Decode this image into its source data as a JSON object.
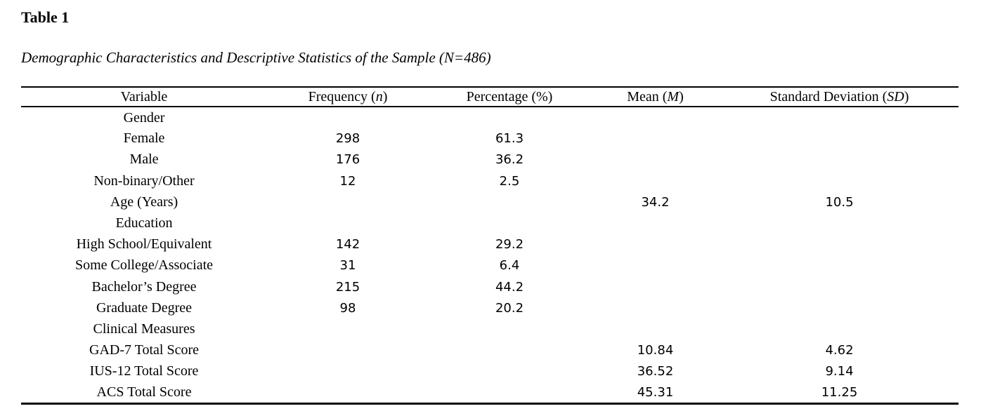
{
  "colors": {
    "background": "#ffffff",
    "text": "#000000",
    "rule": "#000000"
  },
  "document": {
    "table_label": "Table 1",
    "caption": "Demographic Characteristics and Descriptive Statistics of the Sample (N=486)"
  },
  "table": {
    "columns": [
      {
        "key": "variable",
        "prefix": "Variable",
        "symbol": "",
        "suffix": ""
      },
      {
        "key": "frequency",
        "prefix": "Frequency (",
        "symbol": "n",
        "suffix": ")"
      },
      {
        "key": "percentage",
        "prefix": "Percentage (%)",
        "symbol": "",
        "suffix": ""
      },
      {
        "key": "mean",
        "prefix": "Mean (",
        "symbol": "M",
        "suffix": ")"
      },
      {
        "key": "sd",
        "prefix": "Standard Deviation (",
        "symbol": "SD",
        "suffix": ")"
      }
    ],
    "rows": [
      {
        "variable": "Gender",
        "frequency": "",
        "percentage": "",
        "mean": "",
        "sd": ""
      },
      {
        "variable": "Female",
        "frequency": "298",
        "percentage": "61.3",
        "mean": "",
        "sd": ""
      },
      {
        "variable": "Male",
        "frequency": "176",
        "percentage": "36.2",
        "mean": "",
        "sd": ""
      },
      {
        "variable": "Non-binary/Other",
        "frequency": "12",
        "percentage": "2.5",
        "mean": "",
        "sd": ""
      },
      {
        "variable": "Age (Years)",
        "frequency": "",
        "percentage": "",
        "mean": "34.2",
        "sd": "10.5"
      },
      {
        "variable": "Education",
        "frequency": "",
        "percentage": "",
        "mean": "",
        "sd": ""
      },
      {
        "variable": "High School/Equivalent",
        "frequency": "142",
        "percentage": "29.2",
        "mean": "",
        "sd": ""
      },
      {
        "variable": "Some College/Associate",
        "frequency": "31",
        "percentage": "6.4",
        "mean": "",
        "sd": ""
      },
      {
        "variable": "Bachelor’s Degree",
        "frequency": "215",
        "percentage": "44.2",
        "mean": "",
        "sd": ""
      },
      {
        "variable": "Graduate Degree",
        "frequency": "98",
        "percentage": "20.2",
        "mean": "",
        "sd": ""
      },
      {
        "variable": "Clinical Measures",
        "frequency": "",
        "percentage": "",
        "mean": "",
        "sd": ""
      },
      {
        "variable": "GAD-7 Total Score",
        "frequency": "",
        "percentage": "",
        "mean": "10.84",
        "sd": "4.62"
      },
      {
        "variable": "IUS-12 Total Score",
        "frequency": "",
        "percentage": "",
        "mean": "36.52",
        "sd": "9.14"
      },
      {
        "variable": "ACS Total Score",
        "frequency": "",
        "percentage": "",
        "mean": "45.31",
        "sd": "11.25"
      }
    ]
  }
}
